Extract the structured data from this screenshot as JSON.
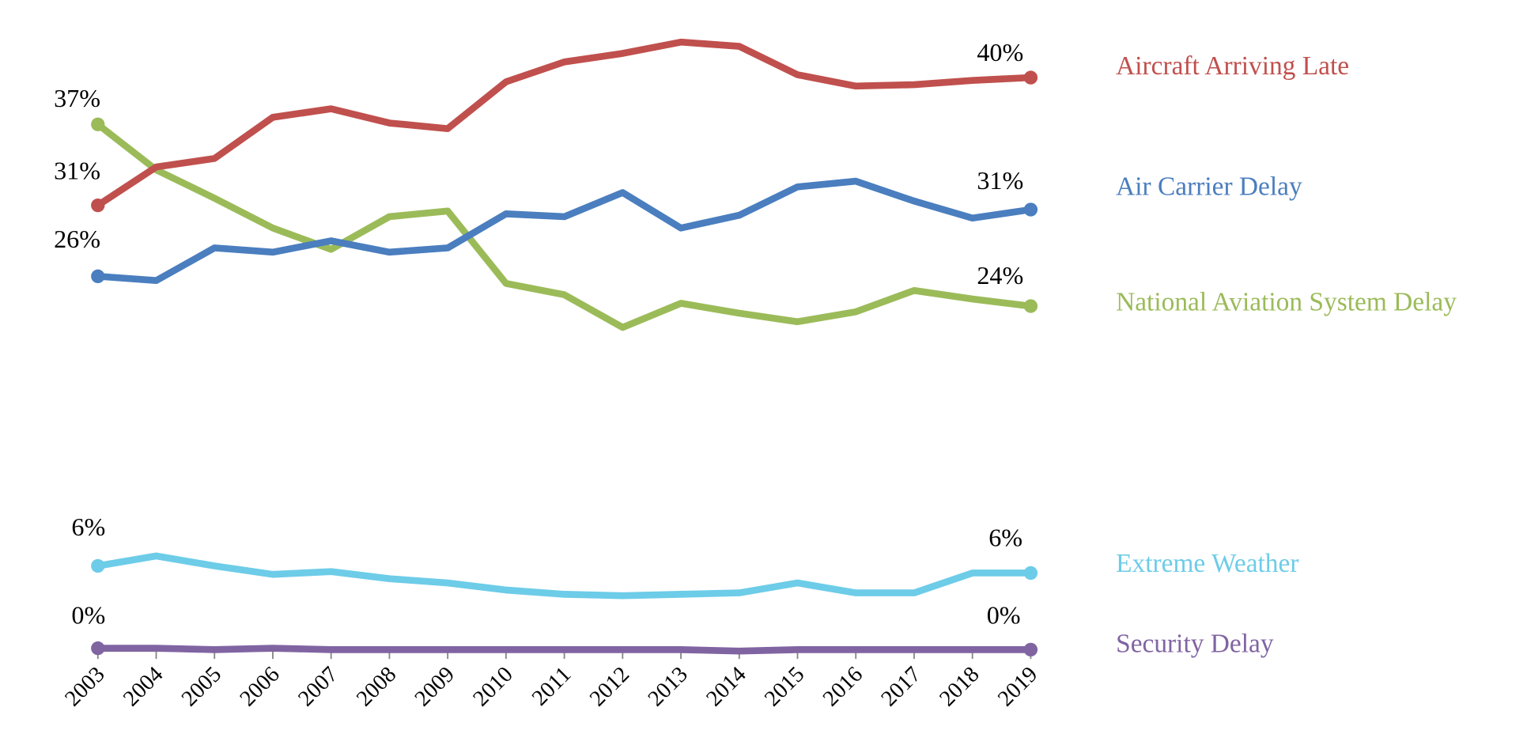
{
  "chart_data": {
    "type": "line",
    "title": "",
    "xlabel": "",
    "ylabel": "",
    "unit": "%",
    "grid": false,
    "legend_placement": "right, inline labels",
    "x": [
      "2003",
      "2004",
      "2005",
      "2006",
      "2007",
      "2008",
      "2009",
      "2010",
      "2011",
      "2012",
      "2013",
      "2014",
      "2015",
      "2016",
      "2017",
      "2018",
      "2019"
    ],
    "series": [
      {
        "name": "Aircraft Arriving Late",
        "color": "#C0504D",
        "start_label": "31%",
        "end_label": "40%",
        "values": [
          31.4,
          34.1,
          34.7,
          37.6,
          38.2,
          37.2,
          36.8,
          40.1,
          41.5,
          42.1,
          42.9,
          42.6,
          40.6,
          39.8,
          39.9,
          40.2,
          40.4
        ]
      },
      {
        "name": "Air Carrier Delay",
        "color": "#4A7EBF",
        "start_label": "26%",
        "end_label": "31%",
        "values": [
          26.4,
          26.1,
          28.4,
          28.1,
          28.9,
          28.1,
          28.4,
          30.8,
          30.6,
          32.3,
          29.8,
          30.7,
          32.7,
          33.1,
          31.7,
          30.5,
          31.1
        ]
      },
      {
        "name": "National Aviation System Delay",
        "color": "#9BBB59",
        "start_label": "37%",
        "end_label": "24%",
        "values": [
          37.1,
          33.9,
          31.9,
          29.8,
          28.3,
          30.6,
          31.0,
          25.9,
          25.1,
          22.8,
          24.5,
          23.8,
          23.2,
          23.9,
          25.4,
          24.8,
          24.3
        ]
      },
      {
        "name": "Extreme Weather",
        "color": "#6DCCE8",
        "start_label": "6%",
        "end_label": "6%",
        "values": [
          6.0,
          6.7,
          6.0,
          5.4,
          5.6,
          5.1,
          4.8,
          4.3,
          4.0,
          3.9,
          4.0,
          4.1,
          4.8,
          4.1,
          4.1,
          5.5,
          5.5
        ]
      },
      {
        "name": "Security Delay",
        "color": "#8064A2",
        "start_label": "0%",
        "end_label": "0%",
        "values": [
          0.2,
          0.2,
          0.1,
          0.2,
          0.1,
          0.1,
          0.1,
          0.1,
          0.1,
          0.1,
          0.1,
          0.0,
          0.1,
          0.1,
          0.1,
          0.1,
          0.1
        ]
      }
    ]
  }
}
